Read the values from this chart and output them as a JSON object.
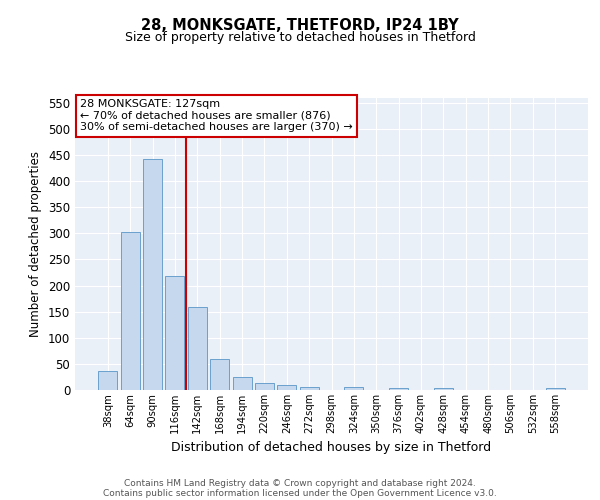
{
  "title1": "28, MONKSGATE, THETFORD, IP24 1BY",
  "title2": "Size of property relative to detached houses in Thetford",
  "xlabel": "Distribution of detached houses by size in Thetford",
  "ylabel": "Number of detached properties",
  "bar_labels": [
    "38sqm",
    "64sqm",
    "90sqm",
    "116sqm",
    "142sqm",
    "168sqm",
    "194sqm",
    "220sqm",
    "246sqm",
    "272sqm",
    "298sqm",
    "324sqm",
    "350sqm",
    "376sqm",
    "402sqm",
    "428sqm",
    "454sqm",
    "480sqm",
    "506sqm",
    "532sqm",
    "558sqm"
  ],
  "bar_values": [
    37,
    303,
    443,
    218,
    158,
    60,
    25,
    13,
    10,
    6,
    0,
    5,
    0,
    3,
    0,
    3,
    0,
    0,
    0,
    0,
    4
  ],
  "bar_color": "#c5d8ed",
  "bar_edge_color": "#5a96c8",
  "vline_color": "#cc0000",
  "annotation_text": "28 MONKSGATE: 127sqm\n← 70% of detached houses are smaller (876)\n30% of semi-detached houses are larger (370) →",
  "annotation_box_facecolor": "#ffffff",
  "annotation_box_edgecolor": "#cc0000",
  "ylim": [
    0,
    560
  ],
  "yticks": [
    0,
    50,
    100,
    150,
    200,
    250,
    300,
    350,
    400,
    450,
    500,
    550
  ],
  "bg_color": "#eaf0f8",
  "footer1": "Contains HM Land Registry data © Crown copyright and database right 2024.",
  "footer2": "Contains public sector information licensed under the Open Government Licence v3.0."
}
